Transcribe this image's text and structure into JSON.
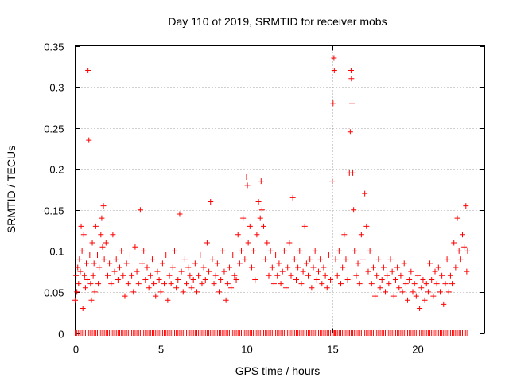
{
  "chart_data": {
    "type": "scatter",
    "title": "Day 110 of 2019, SRMTID for receiver mobs",
    "xlabel": "GPS time / hours",
    "ylabel": "SRMTID / TECUs",
    "xlim": [
      0,
      23.9
    ],
    "ylim": [
      0,
      0.35
    ],
    "xticks": [
      0,
      5,
      10,
      15,
      20
    ],
    "xtick_labels": [
      "0",
      "5",
      "10",
      "15",
      "20"
    ],
    "yticks": [
      0,
      0.05,
      0.1,
      0.15,
      0.2,
      0.25,
      0.3,
      0.35
    ],
    "ytick_labels": [
      "0",
      "0.05",
      "0.1",
      "0.15",
      "0.2",
      "0.25",
      "0.3",
      "0.35"
    ],
    "grid": true,
    "marker": "plus",
    "color": "#ff0000",
    "series": [
      {
        "name": "SRMTID",
        "points": [
          [
            0.0,
            0.04
          ],
          [
            0.05,
            0.07
          ],
          [
            0.1,
            0.05
          ],
          [
            0.15,
            0.08
          ],
          [
            0.2,
            0.06
          ],
          [
            0.25,
            0.09
          ],
          [
            0.3,
            0.075
          ],
          [
            0.35,
            0.13
          ],
          [
            0.4,
            0.1
          ],
          [
            0.45,
            0.03
          ],
          [
            0.5,
            0.12
          ],
          [
            0.55,
            0.07
          ],
          [
            0.6,
            0.055
          ],
          [
            0.65,
            0.085
          ],
          [
            0.7,
            0.065
          ],
          [
            0.75,
            0.32
          ],
          [
            0.8,
            0.235
          ],
          [
            0.85,
            0.095
          ],
          [
            0.9,
            0.06
          ],
          [
            0.95,
            0.04
          ],
          [
            1.0,
            0.11
          ],
          [
            1.05,
            0.07
          ],
          [
            1.1,
            0.085
          ],
          [
            1.15,
            0.05
          ],
          [
            1.2,
            0.13
          ],
          [
            1.3,
            0.095
          ],
          [
            1.35,
            0.06
          ],
          [
            1.4,
            0.08
          ],
          [
            1.5,
            0.12
          ],
          [
            1.55,
            0.14
          ],
          [
            1.6,
            0.105
          ],
          [
            1.65,
            0.155
          ],
          [
            1.7,
            0.09
          ],
          [
            1.8,
            0.11
          ],
          [
            1.9,
            0.07
          ],
          [
            2.0,
            0.085
          ],
          [
            2.1,
            0.06
          ],
          [
            2.2,
            0.12
          ],
          [
            2.3,
            0.075
          ],
          [
            2.4,
            0.09
          ],
          [
            2.5,
            0.065
          ],
          [
            2.6,
            0.08
          ],
          [
            2.7,
            0.1
          ],
          [
            2.8,
            0.07
          ],
          [
            2.9,
            0.045
          ],
          [
            3.0,
            0.085
          ],
          [
            3.1,
            0.06
          ],
          [
            3.2,
            0.095
          ],
          [
            3.3,
            0.07
          ],
          [
            3.4,
            0.05
          ],
          [
            3.5,
            0.105
          ],
          [
            3.6,
            0.075
          ],
          [
            3.7,
            0.06
          ],
          [
            3.8,
            0.15
          ],
          [
            3.9,
            0.085
          ],
          [
            4.0,
            0.1
          ],
          [
            4.1,
            0.065
          ],
          [
            4.2,
            0.08
          ],
          [
            4.3,
            0.055
          ],
          [
            4.4,
            0.07
          ],
          [
            4.5,
            0.09
          ],
          [
            4.6,
            0.06
          ],
          [
            4.7,
            0.045
          ],
          [
            4.8,
            0.075
          ],
          [
            4.9,
            0.065
          ],
          [
            5.0,
            0.05
          ],
          [
            5.1,
            0.085
          ],
          [
            5.2,
            0.06
          ],
          [
            5.3,
            0.095
          ],
          [
            5.4,
            0.04
          ],
          [
            5.5,
            0.07
          ],
          [
            5.6,
            0.06
          ],
          [
            5.7,
            0.08
          ],
          [
            5.8,
            0.1
          ],
          [
            5.9,
            0.055
          ],
          [
            6.0,
            0.065
          ],
          [
            6.1,
            0.145
          ],
          [
            6.2,
            0.075
          ],
          [
            6.3,
            0.05
          ],
          [
            6.4,
            0.09
          ],
          [
            6.5,
            0.06
          ],
          [
            6.6,
            0.08
          ],
          [
            6.7,
            0.07
          ],
          [
            6.8,
            0.055
          ],
          [
            6.9,
            0.065
          ],
          [
            7.0,
            0.085
          ],
          [
            7.1,
            0.05
          ],
          [
            7.2,
            0.07
          ],
          [
            7.3,
            0.095
          ],
          [
            7.4,
            0.06
          ],
          [
            7.5,
            0.08
          ],
          [
            7.6,
            0.065
          ],
          [
            7.7,
            0.11
          ],
          [
            7.8,
            0.075
          ],
          [
            7.9,
            0.16
          ],
          [
            8.0,
            0.09
          ],
          [
            8.1,
            0.06
          ],
          [
            8.2,
            0.07
          ],
          [
            8.3,
            0.085
          ],
          [
            8.4,
            0.05
          ],
          [
            8.5,
            0.065
          ],
          [
            8.6,
            0.1
          ],
          [
            8.7,
            0.075
          ],
          [
            8.8,
            0.04
          ],
          [
            8.9,
            0.06
          ],
          [
            9.0,
            0.08
          ],
          [
            9.1,
            0.055
          ],
          [
            9.2,
            0.095
          ],
          [
            9.3,
            0.07
          ],
          [
            9.4,
            0.065
          ],
          [
            9.5,
            0.12
          ],
          [
            9.6,
            0.085
          ],
          [
            9.7,
            0.1
          ],
          [
            9.8,
            0.14
          ],
          [
            9.9,
            0.09
          ],
          [
            10.0,
            0.19
          ],
          [
            10.05,
            0.18
          ],
          [
            10.1,
            0.11
          ],
          [
            10.2,
            0.13
          ],
          [
            10.3,
            0.08
          ],
          [
            10.4,
            0.1
          ],
          [
            10.5,
            0.065
          ],
          [
            10.6,
            0.12
          ],
          [
            10.7,
            0.16
          ],
          [
            10.8,
            0.14
          ],
          [
            10.85,
            0.185
          ],
          [
            10.9,
            0.15
          ],
          [
            11.0,
            0.13
          ],
          [
            11.1,
            0.09
          ],
          [
            11.2,
            0.11
          ],
          [
            11.3,
            0.07
          ],
          [
            11.4,
            0.1
          ],
          [
            11.5,
            0.08
          ],
          [
            11.6,
            0.06
          ],
          [
            11.7,
            0.095
          ],
          [
            11.8,
            0.07
          ],
          [
            11.9,
            0.085
          ],
          [
            12.0,
            0.06
          ],
          [
            12.1,
            0.075
          ],
          [
            12.2,
            0.1
          ],
          [
            12.3,
            0.055
          ],
          [
            12.4,
            0.08
          ],
          [
            12.5,
            0.11
          ],
          [
            12.6,
            0.07
          ],
          [
            12.7,
            0.165
          ],
          [
            12.8,
            0.09
          ],
          [
            12.9,
            0.065
          ],
          [
            13.0,
            0.08
          ],
          [
            13.1,
            0.1
          ],
          [
            13.2,
            0.06
          ],
          [
            13.3,
            0.075
          ],
          [
            13.4,
            0.13
          ],
          [
            13.5,
            0.085
          ],
          [
            13.6,
            0.07
          ],
          [
            13.7,
            0.09
          ],
          [
            13.8,
            0.055
          ],
          [
            13.9,
            0.08
          ],
          [
            14.0,
            0.1
          ],
          [
            14.1,
            0.065
          ],
          [
            14.2,
            0.075
          ],
          [
            14.3,
            0.09
          ],
          [
            14.4,
            0.06
          ],
          [
            14.5,
            0.08
          ],
          [
            14.6,
            0.07
          ],
          [
            14.7,
            0.055
          ],
          [
            14.8,
            0.095
          ],
          [
            14.9,
            0.065
          ],
          [
            15.0,
            0.185
          ],
          [
            15.05,
            0.28
          ],
          [
            15.1,
            0.335
          ],
          [
            15.12,
            0.32
          ],
          [
            15.2,
            0.09
          ],
          [
            15.3,
            0.07
          ],
          [
            15.4,
            0.1
          ],
          [
            15.5,
            0.06
          ],
          [
            15.6,
            0.08
          ],
          [
            15.7,
            0.12
          ],
          [
            15.8,
            0.09
          ],
          [
            15.9,
            0.065
          ],
          [
            16.0,
            0.195
          ],
          [
            16.05,
            0.245
          ],
          [
            16.1,
            0.32
          ],
          [
            16.12,
            0.31
          ],
          [
            16.15,
            0.28
          ],
          [
            16.2,
            0.195
          ],
          [
            16.25,
            0.15
          ],
          [
            16.3,
            0.1
          ],
          [
            16.4,
            0.07
          ],
          [
            16.5,
            0.085
          ],
          [
            16.6,
            0.06
          ],
          [
            16.7,
            0.12
          ],
          [
            16.8,
            0.09
          ],
          [
            16.9,
            0.17
          ],
          [
            17.0,
            0.13
          ],
          [
            17.1,
            0.075
          ],
          [
            17.2,
            0.1
          ],
          [
            17.3,
            0.06
          ],
          [
            17.4,
            0.08
          ],
          [
            17.5,
            0.045
          ],
          [
            17.6,
            0.07
          ],
          [
            17.7,
            0.09
          ],
          [
            17.8,
            0.055
          ],
          [
            17.9,
            0.065
          ],
          [
            18.0,
            0.08
          ],
          [
            18.1,
            0.05
          ],
          [
            18.2,
            0.07
          ],
          [
            18.3,
            0.06
          ],
          [
            18.4,
            0.09
          ],
          [
            18.5,
            0.075
          ],
          [
            18.6,
            0.045
          ],
          [
            18.7,
            0.065
          ],
          [
            18.8,
            0.08
          ],
          [
            18.9,
            0.055
          ],
          [
            19.0,
            0.07
          ],
          [
            19.1,
            0.05
          ],
          [
            19.2,
            0.085
          ],
          [
            19.3,
            0.06
          ],
          [
            19.4,
            0.04
          ],
          [
            19.5,
            0.065
          ],
          [
            19.6,
            0.075
          ],
          [
            19.7,
            0.05
          ],
          [
            19.8,
            0.06
          ],
          [
            19.9,
            0.045
          ],
          [
            20.0,
            0.07
          ],
          [
            20.1,
            0.03
          ],
          [
            20.2,
            0.055
          ],
          [
            20.3,
            0.065
          ],
          [
            20.4,
            0.04
          ],
          [
            20.5,
            0.06
          ],
          [
            20.6,
            0.05
          ],
          [
            20.7,
            0.085
          ],
          [
            20.8,
            0.065
          ],
          [
            20.9,
            0.045
          ],
          [
            21.0,
            0.075
          ],
          [
            21.1,
            0.06
          ],
          [
            21.2,
            0.08
          ],
          [
            21.3,
            0.05
          ],
          [
            21.4,
            0.07
          ],
          [
            21.5,
            0.035
          ],
          [
            21.6,
            0.06
          ],
          [
            21.7,
            0.09
          ],
          [
            21.8,
            0.05
          ],
          [
            21.9,
            0.07
          ],
          [
            22.0,
            0.06
          ],
          [
            22.1,
            0.11
          ],
          [
            22.2,
            0.08
          ],
          [
            22.3,
            0.14
          ],
          [
            22.4,
            0.1
          ],
          [
            22.5,
            0.09
          ],
          [
            22.6,
            0.12
          ],
          [
            22.7,
            0.105
          ],
          [
            22.8,
            0.155
          ],
          [
            22.85,
            0.075
          ],
          [
            22.9,
            0.1
          ],
          [
            15.15,
            0.0
          ],
          [
            16.0,
            0.0
          ]
        ]
      }
    ],
    "zero_row": {
      "y": 0,
      "x_start": 0.0,
      "x_end": 22.9,
      "x_step": 0.1
    }
  }
}
